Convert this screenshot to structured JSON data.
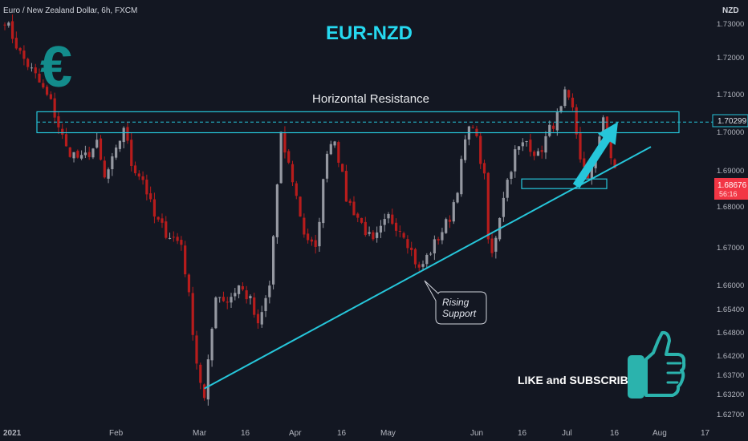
{
  "header": {
    "symbol_line": "Euro / New Zealand Dollar, 6h, FXCM",
    "currency": "NZD"
  },
  "labels": {
    "title": "EUR-NZD",
    "resistance": "Horizontal Resistance",
    "support_line1": "Rising",
    "support_line2": "Support",
    "cta": "LIKE and SUBSCRIBE",
    "euro_symbol": "€"
  },
  "price_badges": {
    "level": "1.70299",
    "last": "1.68676",
    "countdown": "56:16"
  },
  "colors": {
    "background": "#131722",
    "accent": "#26c6da",
    "up_candle": "#9598a1",
    "down_candle": "#b71c1c",
    "last_price_badge": "#f23645"
  },
  "icons": [
    "euro-icon",
    "thumbs-up-icon"
  ],
  "chart_data": {
    "type": "candlestick",
    "instrument": "Euro / New Zealand Dollar",
    "timeframe": "6h",
    "source": "FXCM",
    "y_unit": "NZD",
    "ylim": [
      1.6245,
      1.734
    ],
    "y_ticks": [
      "1.73000",
      "1.72000",
      "1.71000",
      "1.70000",
      "1.69000",
      "1.68000",
      "1.67000",
      "1.66000",
      "1.65400",
      "1.64800",
      "1.64200",
      "1.63700",
      "1.63200",
      "1.62700"
    ],
    "x_ticks": [
      "2021",
      "Feb",
      "Mar",
      "16",
      "Apr",
      "16",
      "May",
      "Jun",
      "16",
      "Jul",
      "16",
      "Aug",
      "17"
    ],
    "price_path": [
      [
        0,
        1.73
      ],
      [
        4,
        1.721
      ],
      [
        8,
        1.715
      ],
      [
        12,
        1.708
      ],
      [
        16,
        1.696
      ],
      [
        20,
        1.693
      ],
      [
        24,
        1.697
      ],
      [
        26,
        1.688
      ],
      [
        29,
        1.695
      ],
      [
        31,
        1.702
      ],
      [
        33,
        1.692
      ],
      [
        36,
        1.688
      ],
      [
        39,
        1.678
      ],
      [
        42,
        1.674
      ],
      [
        46,
        1.671
      ],
      [
        48,
        1.657
      ],
      [
        50,
        1.64
      ],
      [
        52,
        1.63
      ],
      [
        55,
        1.658
      ],
      [
        58,
        1.656
      ],
      [
        61,
        1.66
      ],
      [
        64,
        1.656
      ],
      [
        66,
        1.649
      ],
      [
        69,
        1.66
      ],
      [
        72,
        1.699
      ],
      [
        75,
        1.688
      ],
      [
        78,
        1.674
      ],
      [
        81,
        1.669
      ],
      [
        84,
        1.696
      ],
      [
        86,
        1.699
      ],
      [
        89,
        1.683
      ],
      [
        92,
        1.678
      ],
      [
        96,
        1.671
      ],
      [
        100,
        1.678
      ],
      [
        104,
        1.674
      ],
      [
        108,
        1.664
      ],
      [
        112,
        1.671
      ],
      [
        116,
        1.678
      ],
      [
        118,
        1.686
      ],
      [
        120,
        1.698
      ],
      [
        122,
        1.703
      ],
      [
        125,
        1.688
      ],
      [
        126,
        1.672
      ],
      [
        127,
        1.668
      ],
      [
        130,
        1.684
      ],
      [
        133,
        1.695
      ],
      [
        136,
        1.698
      ],
      [
        139,
        1.694
      ],
      [
        142,
        1.701
      ],
      [
        145,
        1.706
      ],
      [
        146,
        1.71
      ],
      [
        148,
        1.706
      ],
      [
        150,
        1.694
      ],
      [
        152,
        1.687
      ],
      [
        154,
        1.696
      ],
      [
        156,
        1.703
      ],
      [
        158,
        1.694
      ],
      [
        160,
        1.687
      ]
    ],
    "annotations": {
      "horizontal_resistance_zone": [
        1.7002,
        1.7057
      ],
      "dashed_level": 1.70299,
      "rising_support": {
        "from": [
          52,
          1.633
        ],
        "to": [
          175,
          1.6965
        ]
      },
      "arrow": {
        "from": [
          160,
          1.686
        ],
        "to": [
          173,
          1.702
        ]
      },
      "retest_box": {
        "x": [
          148,
          166
        ],
        "y": [
          1.6855,
          1.687
        ]
      },
      "callout": {
        "at": [
          109,
          1.661
        ]
      }
    },
    "grid": false,
    "legend": "none"
  }
}
